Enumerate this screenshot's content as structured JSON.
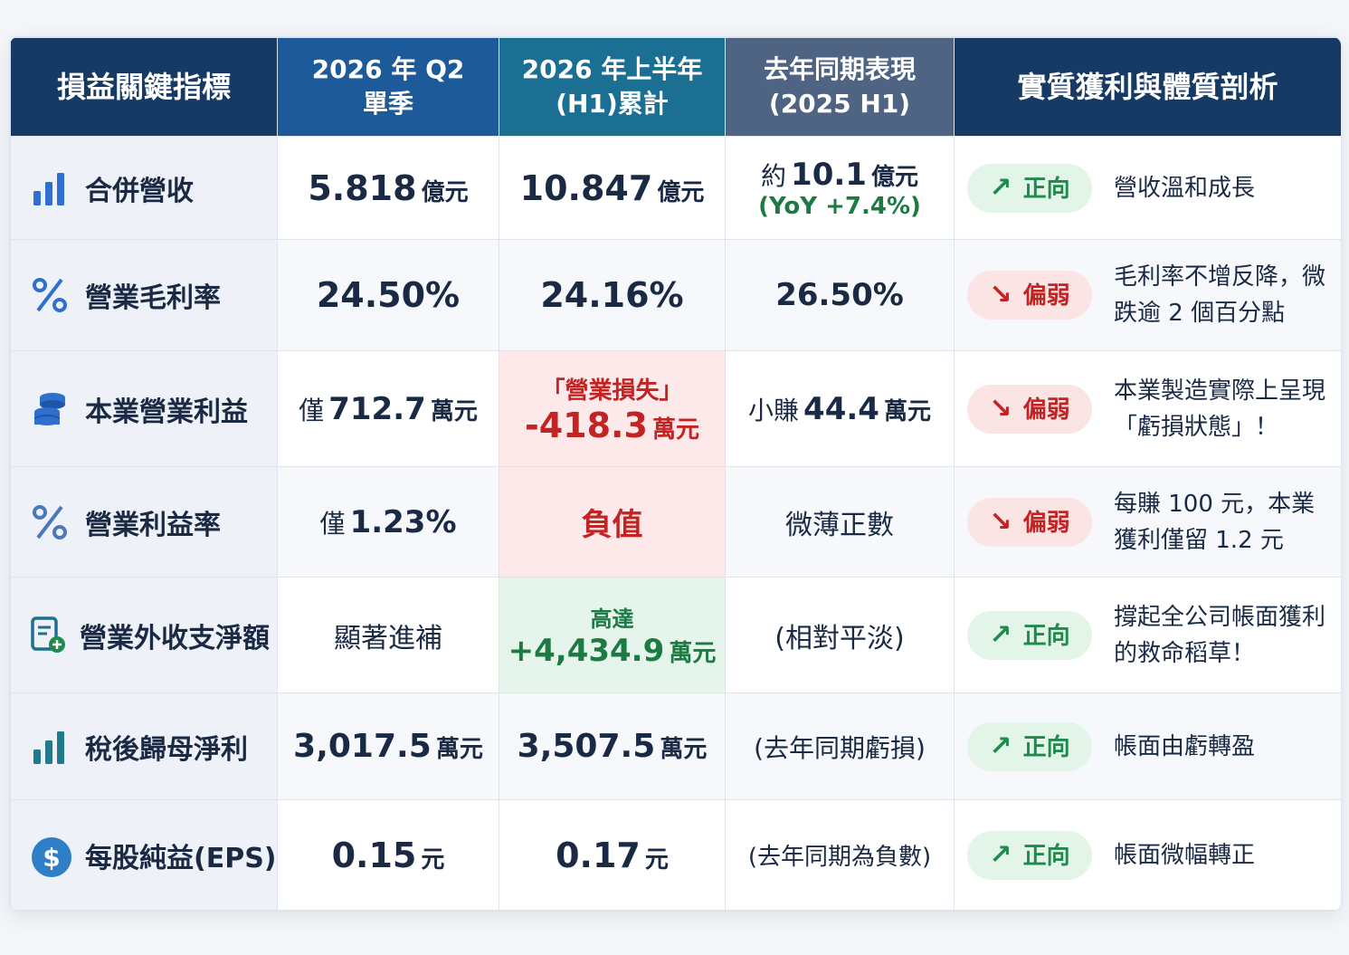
{
  "header": {
    "col0": "損益關鍵指標",
    "col1_l1": "2026 年 Q2",
    "col1_l2": "單季",
    "col2_l1": "2026 年上半年",
    "col2_l2": "(H1)累計",
    "col3_l1": "去年同期表現",
    "col3_l2": "(2025 H1)",
    "col4": "實質獲利與體質剖析"
  },
  "rows": [
    {
      "name": "合併營收",
      "icon": "bar-chart-icon",
      "q2_val": "5.818",
      "q2_unit": "億元",
      "h1_val": "10.847",
      "h1_unit": "億元",
      "ly_pre": "約",
      "ly_val": "10.1",
      "ly_unit": "億元",
      "ly_sub": "(YoY +7.4%)",
      "trend": "正向",
      "trend_arrow": "↗",
      "note": "營收溫和成長"
    },
    {
      "name": "營業毛利率",
      "icon": "percent-icon",
      "q2_val": "24.50%",
      "h1_val": "24.16%",
      "ly_val": "26.50%",
      "trend": "偏弱",
      "trend_arrow": "↘",
      "note": "毛利率不增反降，微跌逾 2 個百分點"
    },
    {
      "name": "本業營業利益",
      "icon": "coins-stack-icon",
      "q2_pre": "僅",
      "q2_val": "712.7",
      "q2_unit": "萬元",
      "h1_label": "「營業損失」",
      "h1_val": "-418.3",
      "h1_unit": "萬元",
      "ly_pre": "小賺",
      "ly_val": "44.4",
      "ly_unit": "萬元",
      "trend": "偏弱",
      "trend_arrow": "↘",
      "note": "本業製造實際上呈現「虧損狀態」！"
    },
    {
      "name": "營業利益率",
      "icon": "percent-icon",
      "q2_pre": "僅",
      "q2_val": "1.23%",
      "h1_val": "負值",
      "ly_text": "微薄正數",
      "trend": "偏弱",
      "trend_arrow": "↘",
      "note": "每賺 100 元，本業獲利僅留 1.2 元"
    },
    {
      "name": "營業外收支淨額",
      "icon": "document-plus-icon",
      "q2_text": "顯著進補",
      "h1_label": "高達",
      "h1_val": "+4,434.9",
      "h1_unit": "萬元",
      "ly_text": "(相對平淡)",
      "trend": "正向",
      "trend_arrow": "↗",
      "note": "撐起全公司帳面獲利的救命稻草！"
    },
    {
      "name": "稅後歸母淨利",
      "icon": "bar-chart-icon",
      "q2_val": "3,017.5",
      "q2_unit": "萬元",
      "h1_val": "3,507.5",
      "h1_unit": "萬元",
      "ly_text": "(去年同期虧損)",
      "trend": "正向",
      "trend_arrow": "↗",
      "note": "帳面由虧轉盈"
    },
    {
      "name": "每股純益(EPS)",
      "icon": "dollar-coin-icon",
      "q2_val": "0.15",
      "q2_unit": "元",
      "h1_val": "0.17",
      "h1_unit": "元",
      "ly_text": "(去年同期為負數)",
      "trend": "正向",
      "trend_arrow": "↗",
      "note": "帳面微幅轉正"
    }
  ],
  "colors": {
    "header_dark": "#163a64",
    "header_blue": "#1c5a99",
    "header_teal": "#1a6f93",
    "header_slate": "#4e6482",
    "negative_red": "#c22424",
    "positive_green": "#1f8a4c"
  }
}
